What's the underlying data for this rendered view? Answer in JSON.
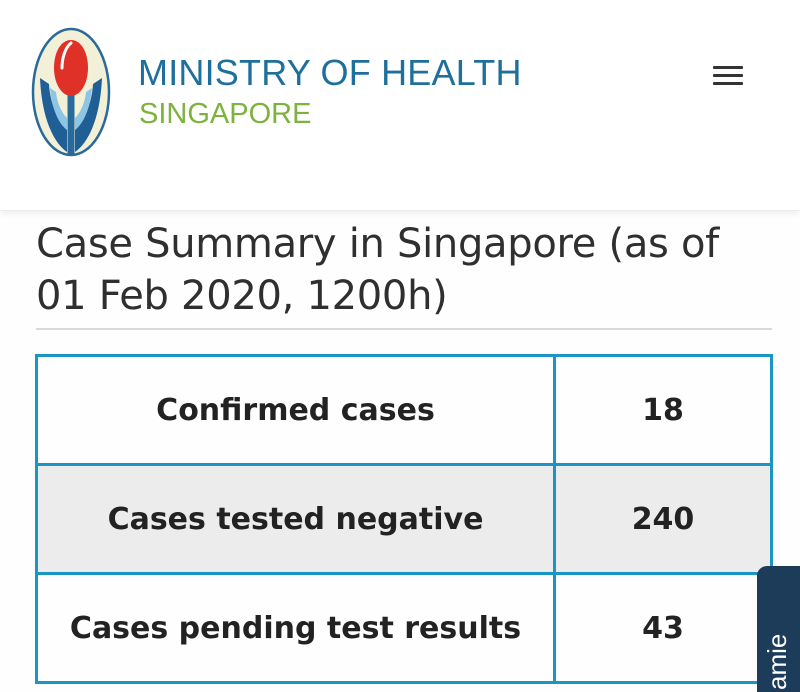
{
  "header": {
    "org_name": "MINISTRY OF HEALTH",
    "org_sub": "SINGAPORE"
  },
  "page": {
    "title": "Case Summary in Singapore (as of 01 Feb 2020, 1200h)"
  },
  "summary_table": {
    "rows": [
      {
        "label": "Confirmed cases",
        "value": "18"
      },
      {
        "label": "Cases tested negative",
        "value": "240"
      },
      {
        "label": "Cases pending test results",
        "value": "43"
      }
    ]
  },
  "side_tab": {
    "label": "amie"
  },
  "icons": {
    "logo": "moh-logo-icon",
    "menu": "hamburger-menu-icon"
  },
  "colors": {
    "brand_blue": "#1f6f9c",
    "brand_green": "#7eb23e",
    "table_border": "#1b95c4",
    "row_shade": "#ececec",
    "side_tab": "#1c3c5a"
  }
}
